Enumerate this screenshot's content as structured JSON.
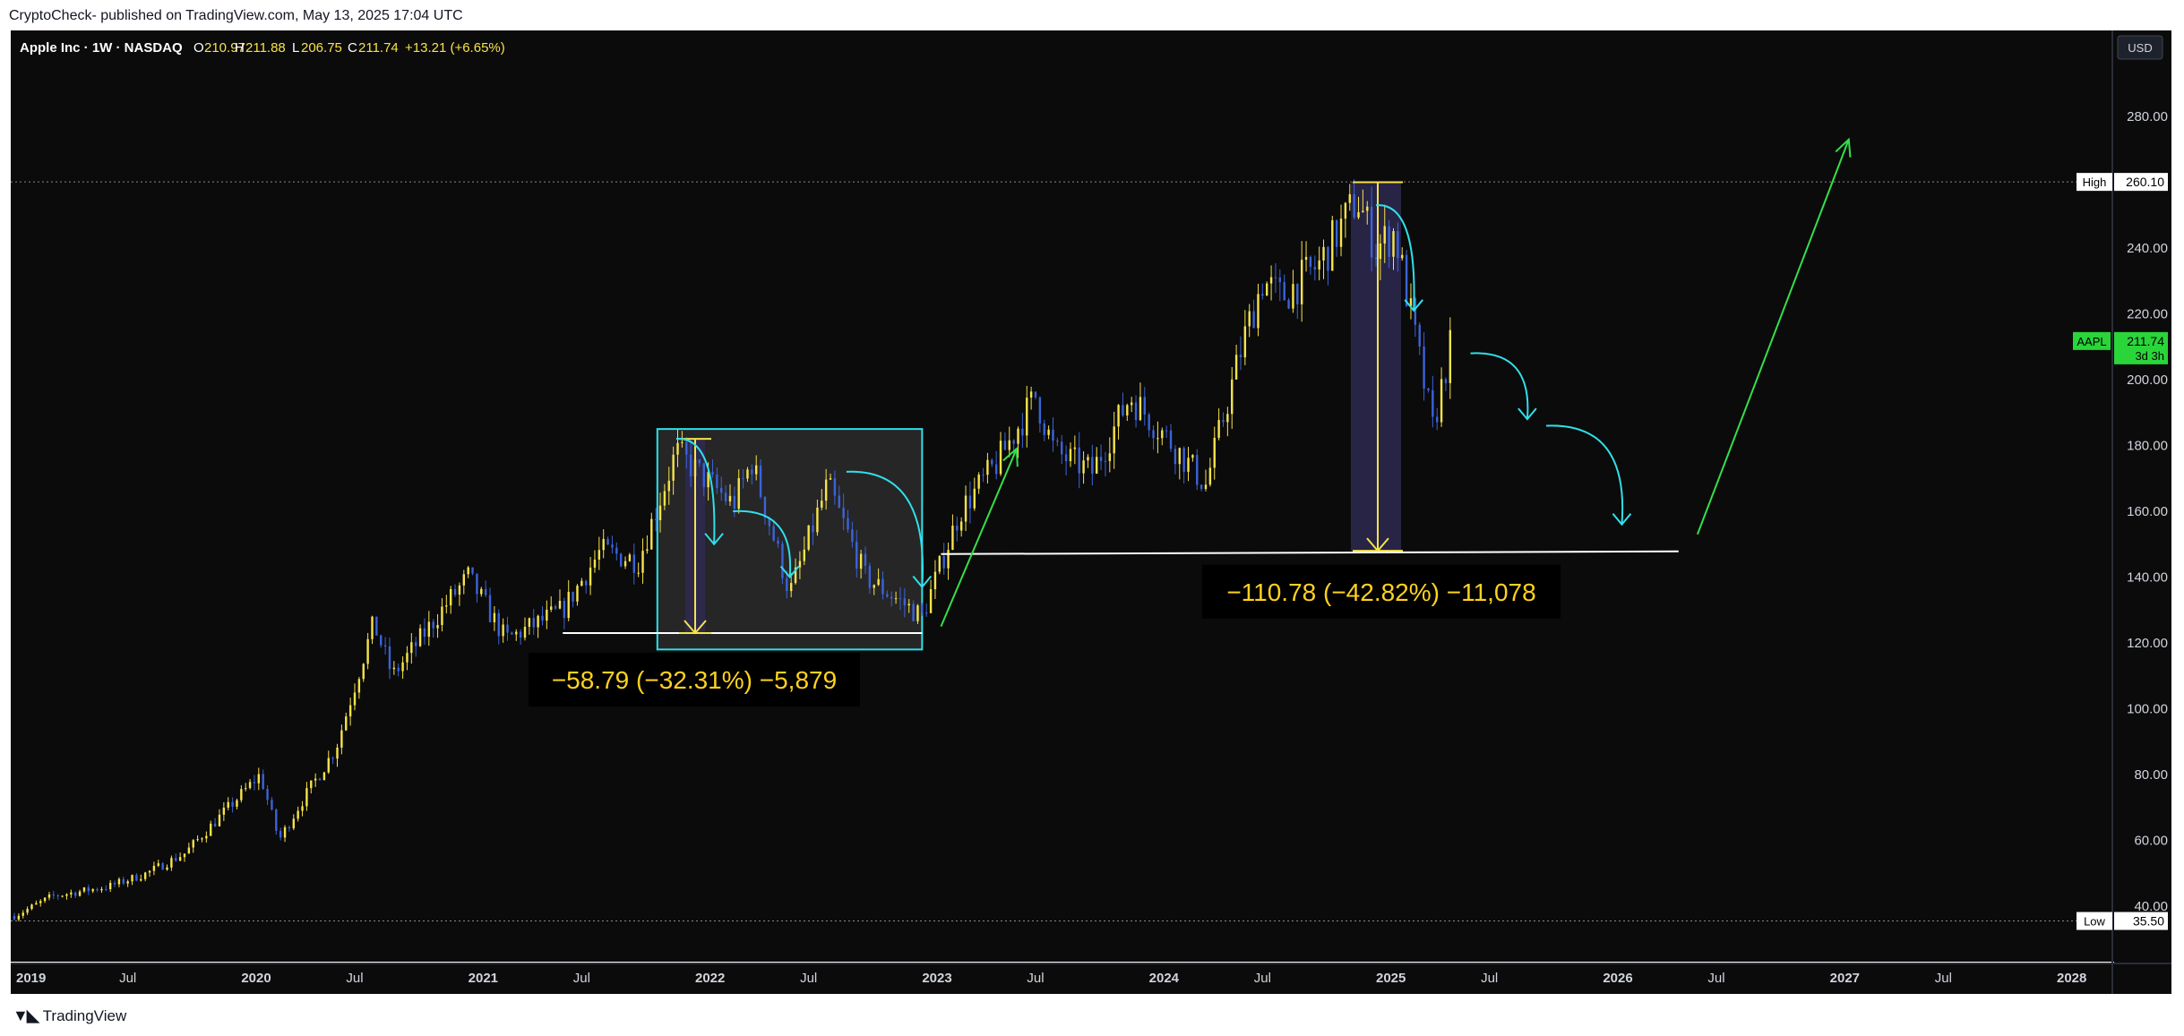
{
  "header": {
    "publisher": "CryptoCheck-",
    "published_text": " published on TradingView.com, May 13, 2025 17:04 UTC"
  },
  "legend": {
    "symbol": "Apple Inc · 1W · NASDAQ",
    "open_label": "O",
    "open": "210.97",
    "high_label": "H",
    "high": "211.88",
    "low_label": "L",
    "low": "206.75",
    "close_label": "C",
    "close": "211.74",
    "change": "+13.21 (+6.65%)"
  },
  "currency_button": "USD",
  "footer": {
    "brand": "TradingView",
    "logo_icon": "tradingview-logo-icon"
  },
  "colors": {
    "background": "#0b0b0b",
    "candle_up": "#f7e34a",
    "candle_down": "#3b63d9",
    "cyan": "#2fe0ea",
    "green": "#33e04a",
    "yellow_label": "#ffd21f",
    "white_line": "#ffffff"
  },
  "chart_data": {
    "type": "candlestick",
    "symbol": "AAPL",
    "timeframe": "1W",
    "ylim": [
      33,
      300
    ],
    "y_ticks": [
      40,
      60,
      80,
      100,
      120,
      140,
      160,
      180,
      200,
      220,
      240,
      260,
      280
    ],
    "x_range": [
      "2019-01",
      "2028-05"
    ],
    "x_ticks": [
      {
        "label": "2019",
        "date": "2019-01"
      },
      {
        "label": "Jul",
        "date": "2019-07"
      },
      {
        "label": "2020",
        "date": "2020-01"
      },
      {
        "label": "Jul",
        "date": "2020-07"
      },
      {
        "label": "2021",
        "date": "2021-01"
      },
      {
        "label": "Jul",
        "date": "2021-07"
      },
      {
        "label": "2022",
        "date": "2022-01"
      },
      {
        "label": "Jul",
        "date": "2022-07"
      },
      {
        "label": "2023",
        "date": "2023-01"
      },
      {
        "label": "Jul",
        "date": "2023-07"
      },
      {
        "label": "2024",
        "date": "2024-01"
      },
      {
        "label": "Jul",
        "date": "2024-07"
      },
      {
        "label": "2025",
        "date": "2025-01"
      },
      {
        "label": "Jul",
        "date": "2025-07"
      },
      {
        "label": "2026",
        "date": "2026-01"
      },
      {
        "label": "Jul",
        "date": "2026-07"
      },
      {
        "label": "2027",
        "date": "2027-01"
      },
      {
        "label": "Jul",
        "date": "2027-07"
      },
      {
        "label": "2028",
        "date": "2028-01"
      }
    ],
    "price_path": [
      [
        "2019-01",
        37
      ],
      [
        "2019-03",
        43
      ],
      [
        "2019-06",
        46
      ],
      [
        "2019-08",
        50
      ],
      [
        "2019-10",
        56
      ],
      [
        "2019-12",
        68
      ],
      [
        "2020-02",
        80
      ],
      [
        "2020-03",
        60
      ],
      [
        "2020-04",
        70
      ],
      [
        "2020-06",
        88
      ],
      [
        "2020-08",
        126
      ],
      [
        "2020-09",
        110
      ],
      [
        "2020-12",
        133
      ],
      [
        "2021-01",
        140
      ],
      [
        "2021-03",
        121
      ],
      [
        "2021-06",
        130
      ],
      [
        "2021-08",
        148
      ],
      [
        "2021-10",
        145
      ],
      [
        "2021-12",
        178
      ],
      [
        "2022-03",
        162
      ],
      [
        "2022-04",
        175
      ],
      [
        "2022-06",
        135
      ],
      [
        "2022-08",
        168
      ],
      [
        "2022-10",
        140
      ],
      [
        "2023-01",
        128
      ],
      [
        "2023-03",
        160
      ],
      [
        "2023-05",
        175
      ],
      [
        "2023-07",
        195
      ],
      [
        "2023-08",
        178
      ],
      [
        "2023-10",
        172
      ],
      [
        "2023-12",
        195
      ],
      [
        "2024-02",
        182
      ],
      [
        "2024-04",
        168
      ],
      [
        "2024-06",
        212
      ],
      [
        "2024-07",
        230
      ],
      [
        "2024-08",
        225
      ],
      [
        "2024-10",
        235
      ],
      [
        "2024-12",
        255
      ],
      [
        "2025-01",
        240
      ],
      [
        "2025-02",
        245
      ],
      [
        "2025-03",
        215
      ],
      [
        "2025-04",
        185
      ],
      [
        "2025-05",
        212
      ]
    ],
    "price_labels": [
      {
        "tag": "High",
        "value": "260.10"
      },
      {
        "tag": "AAPL",
        "value": "211.74",
        "countdown": "3d 3h"
      },
      {
        "tag": "Low",
        "value": "35.50"
      }
    ],
    "high": 260.1,
    "low": 35.5,
    "last": 211.74,
    "annotations": {
      "range_box": {
        "from": "2021-11",
        "to": "2023-01",
        "low": 118,
        "high": 185
      },
      "measures": [
        {
          "label": "−58.79 (−32.31%) −5,879",
          "from": 182,
          "to": 123,
          "date": "2022-01"
        },
        {
          "label": "−110.78 (−42.82%) −11,078",
          "from": 260,
          "to": 148,
          "date": "2025-01"
        }
      ],
      "support_lines": [
        {
          "from": "2021-06",
          "to": "2023-01",
          "price": 123
        },
        {
          "from": "2023-02",
          "to": "2026-05",
          "price": 147
        }
      ],
      "green_arrows": [
        {
          "from": [
            "2023-02",
            125
          ],
          "to": [
            "2023-06",
            179
          ]
        },
        {
          "from": [
            "2026-06",
            153
          ],
          "to": [
            "2027-02",
            273
          ]
        }
      ]
    }
  }
}
